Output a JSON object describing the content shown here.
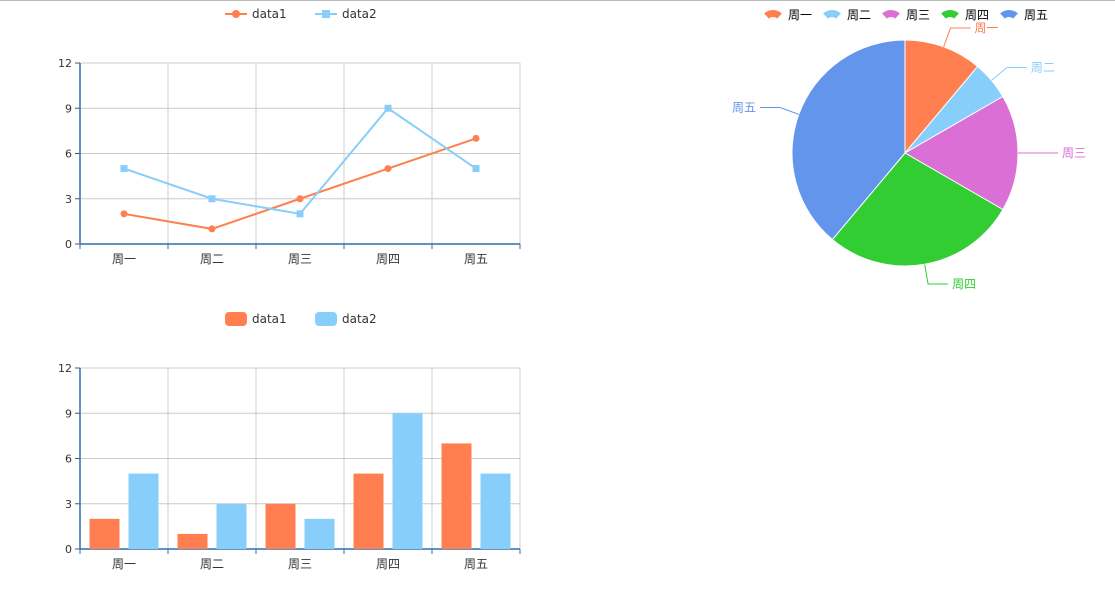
{
  "chart_data": [
    {
      "type": "line",
      "categories": [
        "周一",
        "周二",
        "周三",
        "周四",
        "周五"
      ],
      "series": [
        {
          "name": "data1",
          "values": [
            2,
            1,
            3,
            5,
            7
          ],
          "color": "#ff7f50",
          "marker": "circle"
        },
        {
          "name": "data2",
          "values": [
            5,
            3,
            2,
            9,
            5
          ],
          "color": "#87cefa",
          "marker": "square"
        }
      ],
      "ylim": [
        0,
        12
      ],
      "yticks": [
        0,
        3,
        6,
        9,
        12
      ],
      "grid": true,
      "legend_position": "top-center"
    },
    {
      "type": "pie",
      "categories": [
        "周一",
        "周二",
        "周三",
        "周四",
        "周五"
      ],
      "values": [
        2,
        1,
        3,
        5,
        7
      ],
      "colors": [
        "#ff7f50",
        "#87cefa",
        "#da70d6",
        "#32cd32",
        "#6495ed"
      ],
      "legend_position": "top-right"
    },
    {
      "type": "bar",
      "categories": [
        "周一",
        "周二",
        "周三",
        "周四",
        "周五"
      ],
      "series": [
        {
          "name": "data1",
          "values": [
            2,
            1,
            3,
            5,
            7
          ],
          "color": "#ff7f50"
        },
        {
          "name": "data2",
          "values": [
            5,
            3,
            2,
            9,
            5
          ],
          "color": "#87cefa"
        }
      ],
      "ylim": [
        0,
        12
      ],
      "yticks": [
        0,
        3,
        6,
        9,
        12
      ],
      "grid": true,
      "legend_position": "top-center"
    }
  ]
}
